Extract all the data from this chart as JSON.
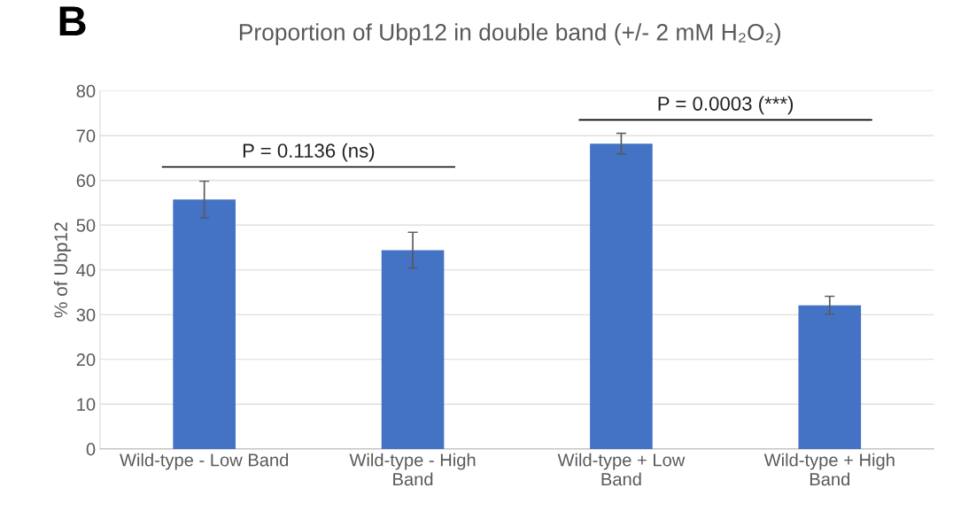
{
  "chart_data": {
    "type": "bar",
    "title": "Proportion of Ubp12 in double band (+/- 2 mM H₂O₂)",
    "ylabel": "% of Ubp12",
    "categories": [
      "Wild-type - Low Band",
      "Wild-type - High\nBand",
      "Wild-type + Low\nBand",
      "Wild-type + High\nBand"
    ],
    "values": [
      55.7,
      44.4,
      68.2,
      32.1
    ],
    "errors": [
      4.1,
      4.0,
      2.3,
      2.0
    ],
    "color": "#4472c4",
    "ylim": [
      0,
      80
    ],
    "yticks": [
      0,
      10,
      20,
      30,
      40,
      50,
      60,
      70,
      80
    ],
    "grid": "y",
    "legend": false,
    "annotations": [
      "B",
      "P = 0.1136 (ns)",
      "P = 0.0003 (***)"
    ]
  }
}
